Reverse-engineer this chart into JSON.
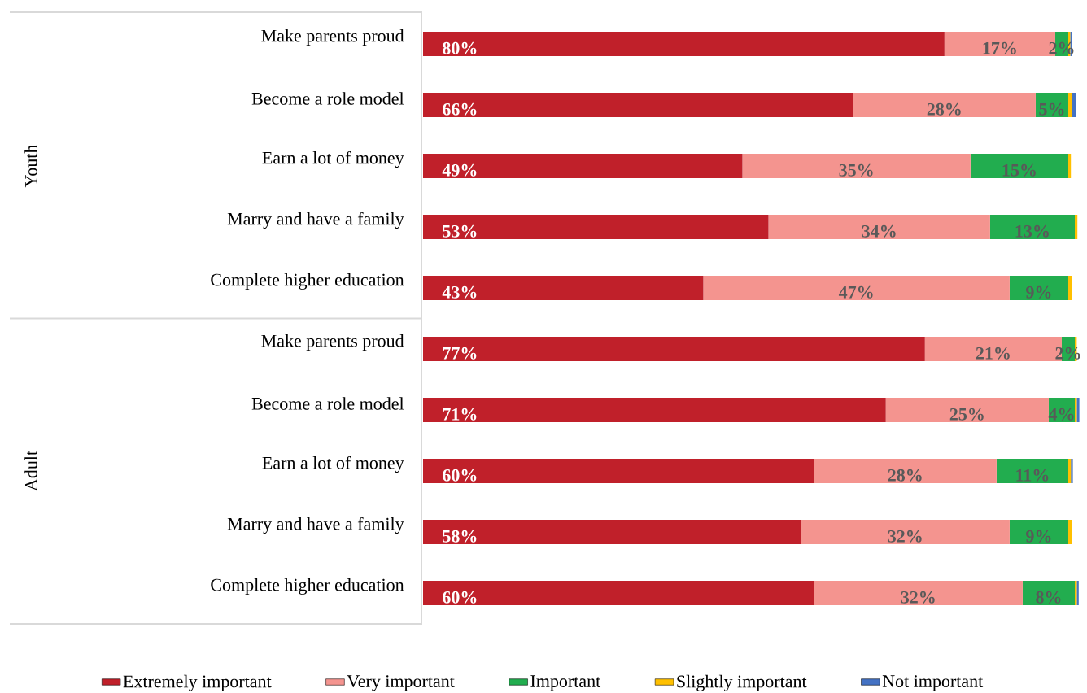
{
  "chart_data": {
    "type": "bar",
    "orientation": "horizontal",
    "stacked": true,
    "categories": [
      "Make parents proud",
      "Become a role model",
      "Earn a lot of money",
      "Marry and have a family",
      "Complete higher education",
      "Make parents proud",
      "Become a role model",
      "Earn a lot of money",
      "Marry and have a family",
      "Complete higher education"
    ],
    "series": [
      {
        "name": "Extremely important",
        "color": "#c0202a",
        "values": [
          80,
          66,
          49,
          53,
          43,
          77,
          71,
          60,
          58,
          60
        ],
        "value_labels": [
          "80%",
          "66%",
          "49%",
          "53%",
          "43%",
          "77%",
          "71%",
          "60%",
          "58%",
          "60%"
        ]
      },
      {
        "name": "Very important",
        "color": "#f4948f",
        "values": [
          17,
          28,
          35,
          34,
          47,
          21,
          25,
          28,
          32,
          32
        ],
        "value_labels": [
          "17%",
          "28%",
          "35%",
          "34%",
          "47%",
          "21%",
          "25%",
          "28%",
          "32%",
          "32%"
        ]
      },
      {
        "name": "Important",
        "color": "#22ad4f",
        "values": [
          2,
          5,
          15,
          13,
          9,
          2,
          4,
          11,
          9,
          8
        ],
        "value_labels": [
          "2%",
          "5%",
          "15%",
          "13%",
          "9%",
          "2%",
          "4%",
          "11%",
          "9%",
          "8%"
        ]
      },
      {
        "name": "Slightly important",
        "color": "#ffc000",
        "values": [
          0.3,
          0.6,
          0.4,
          0.4,
          0.6,
          0.3,
          0.3,
          0.4,
          0.6,
          0.3
        ]
      },
      {
        "name": "Not important",
        "color": "#4472c4",
        "values": [
          0.3,
          0.6,
          0,
          0,
          0,
          0,
          0.4,
          0.3,
          0,
          0.3
        ]
      }
    ],
    "annotations": [
      "Youth",
      "Adult"
    ],
    "xlim": [
      0,
      101
    ],
    "tick_labels": "y",
    "legend": "bottom"
  }
}
